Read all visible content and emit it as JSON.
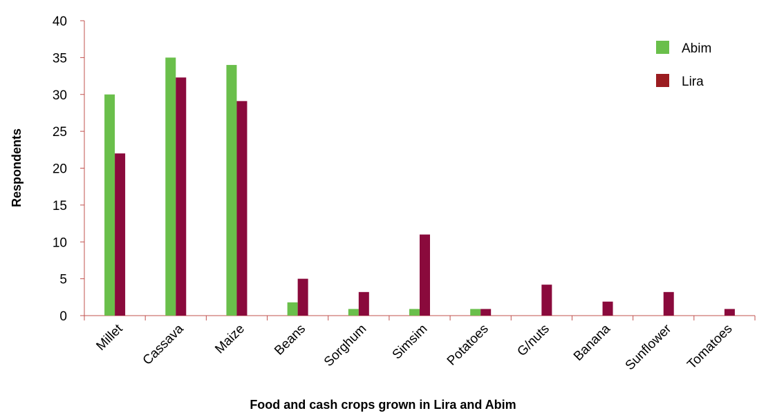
{
  "chart_data": {
    "type": "bar",
    "title": "",
    "xlabel": "Food and cash crops grown in Lira and Abim",
    "ylabel": "Respondents",
    "ylim": [
      0,
      40
    ],
    "yticks": [
      0,
      5,
      10,
      15,
      20,
      25,
      30,
      35,
      40
    ],
    "categories": [
      "Millet",
      "Cassava",
      "Maize",
      "Beans",
      "Sorghum",
      "Simsim",
      "Potatoes",
      "G/nuts",
      "Banana",
      "Sunflower",
      "Tomatoes"
    ],
    "series": [
      {
        "name": "Abim",
        "color": "#6abf4b",
        "values": [
          30,
          35,
          34,
          1.8,
          0.9,
          0.9,
          0.9,
          0,
          0,
          0,
          0
        ]
      },
      {
        "name": "Lira",
        "color": "#8a0a3c",
        "values": [
          22,
          32.3,
          29.1,
          5,
          3.2,
          11,
          0.9,
          4.2,
          1.9,
          3.2,
          0.9
        ]
      }
    ],
    "legend": {
      "position": "top-right",
      "swatch_color_lira": "#9b1c20"
    },
    "grid": false
  }
}
